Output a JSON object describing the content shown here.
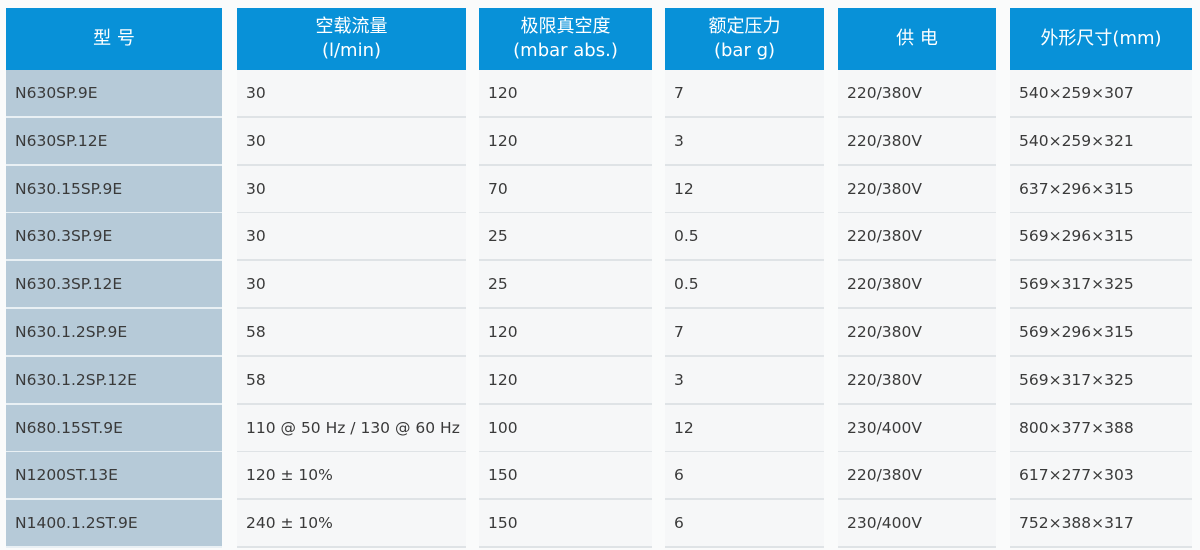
{
  "table": {
    "headers": [
      {
        "line1": "型 号",
        "line2": ""
      },
      {
        "line1": "空载流量",
        "line2": "(l/min)"
      },
      {
        "line1": "极限真空度",
        "line2": "(mbar abs.)"
      },
      {
        "line1": "额定压力",
        "line2": "(bar g)"
      },
      {
        "line1": "供 电",
        "line2": ""
      },
      {
        "line1": "外形尺寸(mm)",
        "line2": ""
      }
    ],
    "rows": [
      [
        "N630SP.9E",
        "30",
        "120",
        "7",
        "220/380V",
        "540×259×307"
      ],
      [
        "N630SP.12E",
        "30",
        "120",
        "3",
        "220/380V",
        "540×259×321"
      ],
      [
        "N630.15SP.9E",
        "30",
        "70",
        "12",
        "220/380V",
        "637×296×315"
      ],
      [
        "N630.3SP.9E",
        "30",
        "25",
        "0.5",
        "220/380V",
        "569×296×315"
      ],
      [
        "N630.3SP.12E",
        "30",
        "25",
        "0.5",
        "220/380V",
        "569×317×325"
      ],
      [
        "N630.1.2SP.9E",
        "58",
        "120",
        "7",
        "220/380V",
        "569×296×315"
      ],
      [
        "N630.1.2SP.12E",
        "58",
        "120",
        "3",
        "220/380V",
        "569×317×325"
      ],
      [
        "N680.15ST.9E",
        "110 @ 50 Hz / 130 @ 60 Hz",
        "100",
        "12",
        "230/400V",
        "800×377×388"
      ],
      [
        "N1200ST.13E",
        "120 ± 10%",
        "150",
        "6",
        "220/380V",
        "617×277×303"
      ],
      [
        "N1400.1.2ST.9E",
        "240 ± 10%",
        "150",
        "6",
        "230/400V",
        "752×388×317"
      ]
    ]
  },
  "colors": {
    "header_bg": "#0891d8",
    "model_col_bg": "#b6cad8",
    "cell_bg": "#f6f7f8"
  }
}
